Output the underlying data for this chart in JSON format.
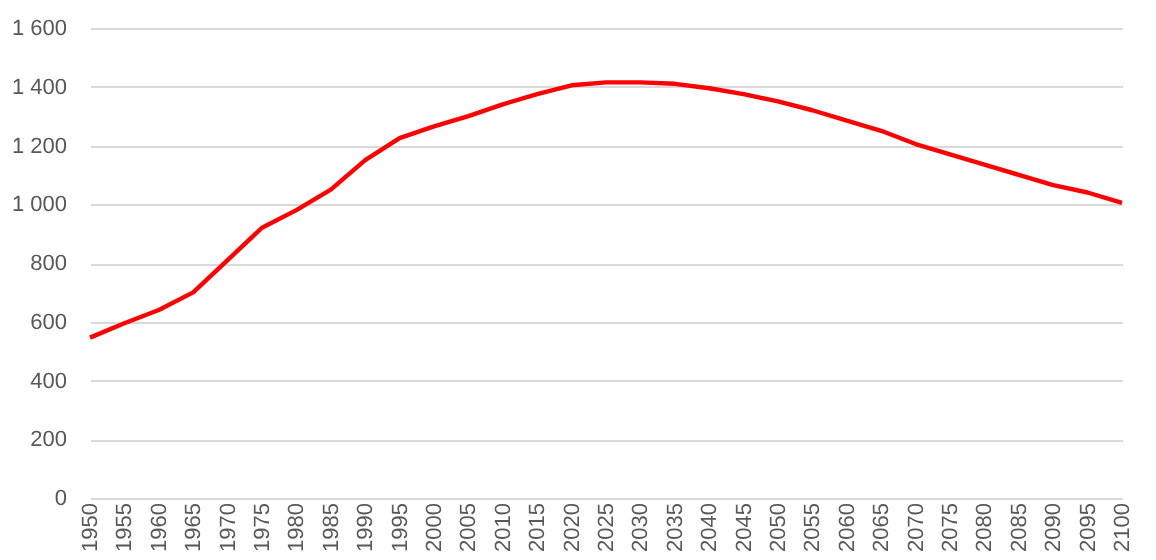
{
  "chart_data": {
    "type": "line",
    "x": [
      1950,
      1955,
      1960,
      1965,
      1970,
      1975,
      1980,
      1985,
      1990,
      1995,
      2000,
      2005,
      2010,
      2015,
      2020,
      2025,
      2030,
      2035,
      2040,
      2045,
      2050,
      2055,
      2060,
      2065,
      2070,
      2075,
      2080,
      2085,
      2090,
      2095,
      2100
    ],
    "series": [
      {
        "color": "#ff0000",
        "values": [
          546,
          595,
          640,
          700,
          810,
          920,
          980,
          1050,
          1150,
          1225,
          1265,
          1300,
          1340,
          1375,
          1405,
          1415,
          1415,
          1410,
          1395,
          1375,
          1350,
          1320,
          1285,
          1250,
          1205,
          1170,
          1135,
          1100,
          1065,
          1040,
          1005
        ]
      }
    ],
    "xlim": [
      1950,
      2100
    ],
    "xticks": [
      1950,
      1955,
      1960,
      1965,
      1970,
      1975,
      1980,
      1985,
      1990,
      1995,
      2000,
      2005,
      2010,
      2015,
      2020,
      2025,
      2030,
      2035,
      2040,
      2045,
      2050,
      2055,
      2060,
      2065,
      2070,
      2075,
      2080,
      2085,
      2090,
      2095,
      2100
    ],
    "ylim": [
      0,
      1600
    ],
    "yticks": [
      0,
      200,
      400,
      600,
      800,
      {
        "value": 1000,
        "label": "1 000"
      },
      {
        "value": 1200,
        "label": "1 200"
      },
      {
        "value": 1400,
        "label": "1 400"
      },
      {
        "value": 1600,
        "label": "1 600"
      }
    ],
    "grid": "y",
    "marker": "none",
    "line_style": "solid"
  }
}
